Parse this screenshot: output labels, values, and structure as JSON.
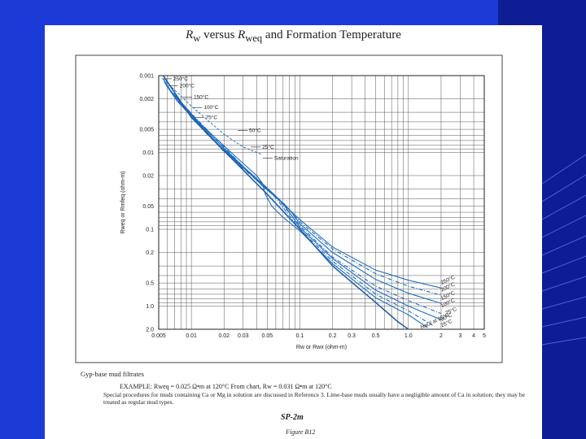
{
  "slide": {
    "background_color": "#1c3ad6",
    "accent_color": "#0a1a8a"
  },
  "chart_data": {
    "type": "line",
    "title": "versus  and Formation Temperature",
    "title_parts": {
      "x_var": "R",
      "x_sub": "w",
      "y_var": "R",
      "y_sub": "weq",
      "rest": "and Formation Temperature"
    },
    "xlabel": "Rw or Rwx (ohm-m)",
    "ylabel": "Rweq or Rmfeq (ohm-m)",
    "x_scale": "log",
    "y_scale": "log",
    "y_reversed": true,
    "xlim": [
      0.005,
      5
    ],
    "ylim": [
      0.001,
      2.0
    ],
    "x_ticks": [
      {
        "v": 0.005,
        "label": "0.005"
      },
      {
        "v": 0.01,
        "label": "0.01"
      },
      {
        "v": 0.02,
        "label": "0.02"
      },
      {
        "v": 0.03,
        "label": "0.03"
      },
      {
        "v": 0.05,
        "label": "0.05"
      },
      {
        "v": 0.1,
        "label": "0.1"
      },
      {
        "v": 0.2,
        "label": "0.2"
      },
      {
        "v": 0.3,
        "label": "0.3"
      },
      {
        "v": 0.5,
        "label": "0.5"
      },
      {
        "v": 1.0,
        "label": "1.0"
      },
      {
        "v": 2,
        "label": "2"
      },
      {
        "v": 3,
        "label": "3"
      },
      {
        "v": 4,
        "label": "4"
      },
      {
        "v": 5,
        "label": "5"
      }
    ],
    "y_ticks": [
      {
        "v": 0.001,
        "label": "0.001"
      },
      {
        "v": 0.002,
        "label": "0.002"
      },
      {
        "v": 0.005,
        "label": "0.005"
      },
      {
        "v": 0.01,
        "label": "0.01"
      },
      {
        "v": 0.02,
        "label": "0.02"
      },
      {
        "v": 0.05,
        "label": "0.05"
      },
      {
        "v": 0.1,
        "label": "0.1"
      },
      {
        "v": 0.2,
        "label": "0.2"
      },
      {
        "v": 0.5,
        "label": "0.5"
      },
      {
        "v": 1.0,
        "label": "1.0"
      },
      {
        "v": 2.0,
        "label": "2.0"
      }
    ],
    "grid": true,
    "series": [
      {
        "name": "250°C",
        "label_left": "250°C",
        "label_right": "250°C",
        "points": [
          [
            0.0055,
            0.0011
          ],
          [
            0.0065,
            0.0016
          ],
          [
            0.008,
            0.0023
          ],
          [
            0.012,
            0.0045
          ],
          [
            0.02,
            0.0095
          ],
          [
            0.035,
            0.019
          ],
          [
            0.06,
            0.038
          ],
          [
            0.1,
            0.075
          ],
          [
            0.2,
            0.17
          ],
          [
            0.5,
            0.34
          ],
          [
            1.0,
            0.46
          ],
          [
            2.0,
            0.58
          ]
        ]
      },
      {
        "name": "200°C",
        "label_left": "200°C",
        "label_right": "200°C",
        "points": [
          [
            0.0056,
            0.0012
          ],
          [
            0.007,
            0.0019
          ],
          [
            0.009,
            0.0029
          ],
          [
            0.014,
            0.0058
          ],
          [
            0.022,
            0.011
          ],
          [
            0.04,
            0.023
          ],
          [
            0.07,
            0.045
          ],
          [
            0.1,
            0.08
          ],
          [
            0.2,
            0.18
          ],
          [
            0.5,
            0.38
          ],
          [
            1.0,
            0.55
          ],
          [
            2.0,
            0.72
          ]
        ]
      },
      {
        "name": "150°C",
        "label_left": "150°C",
        "label_right": "150°C",
        "points": [
          [
            0.0058,
            0.0013
          ],
          [
            0.0075,
            0.0022
          ],
          [
            0.011,
            0.0038
          ],
          [
            0.017,
            0.0075
          ],
          [
            0.028,
            0.014
          ],
          [
            0.05,
            0.029
          ],
          [
            0.08,
            0.055
          ],
          [
            0.1,
            0.085
          ],
          [
            0.2,
            0.2
          ],
          [
            0.5,
            0.45
          ],
          [
            1.0,
            0.68
          ],
          [
            2.0,
            0.92
          ]
        ]
      },
      {
        "name": "100°C",
        "label_left": "100°C",
        "label_right": "100°C",
        "points": [
          [
            0.006,
            0.0014
          ],
          [
            0.0085,
            0.0026
          ],
          [
            0.013,
            0.005
          ],
          [
            0.02,
            0.0098
          ],
          [
            0.035,
            0.019
          ],
          [
            0.06,
            0.037
          ],
          [
            0.1,
            0.09
          ],
          [
            0.2,
            0.23
          ],
          [
            0.5,
            0.55
          ],
          [
            1.0,
            0.85
          ],
          [
            2.0,
            1.25
          ]
        ]
      },
      {
        "name": "75°C",
        "label_left": "75°C",
        "label_right": "75°C",
        "points": [
          [
            0.0062,
            0.0015
          ],
          [
            0.0095,
            0.003
          ],
          [
            0.016,
            0.0065
          ],
          [
            0.028,
            0.014
          ],
          [
            0.045,
            0.027
          ],
          [
            0.07,
            0.046
          ],
          [
            0.1,
            0.095
          ],
          [
            0.2,
            0.24
          ],
          [
            0.5,
            0.62
          ],
          [
            1.0,
            1.0
          ],
          [
            2.0,
            1.5
          ]
        ]
      },
      {
        "name": "50°C",
        "label_left": "50°C",
        "label_right": "50°C",
        "points": [
          [
            0.0065,
            0.0016
          ],
          [
            0.011,
            0.0036
          ],
          [
            0.02,
            0.0085
          ],
          [
            0.035,
            0.019
          ],
          [
            0.06,
            0.039
          ],
          [
            0.1,
            0.1
          ],
          [
            0.2,
            0.26
          ],
          [
            0.5,
            0.7
          ],
          [
            1.0,
            1.15
          ],
          [
            1.7,
            1.8
          ]
        ]
      },
      {
        "name": "25°C",
        "label_left": "25°C",
        "label_right": "25°C",
        "points": [
          [
            0.0068,
            0.0017
          ],
          [
            0.012,
            0.0042
          ],
          [
            0.025,
            0.011
          ],
          [
            0.04,
            0.02
          ],
          [
            0.045,
            0.025
          ],
          [
            0.048,
            0.035
          ],
          [
            0.055,
            0.05
          ],
          [
            0.07,
            0.07
          ],
          [
            0.1,
            0.105
          ],
          [
            0.2,
            0.28
          ],
          [
            0.5,
            0.78
          ],
          [
            1.0,
            1.3
          ],
          [
            1.5,
            1.9
          ]
        ]
      },
      {
        "name": "Saturation",
        "label_left": "Saturation",
        "points": [
          [
            0.0055,
            0.0011
          ],
          [
            0.01,
            0.0025
          ],
          [
            0.02,
            0.0058
          ],
          [
            0.03,
            0.0085
          ],
          [
            0.045,
            0.0107
          ]
        ]
      },
      {
        "name": "NaCl at 25°C",
        "label_right": "NaCl at 25°C",
        "points": [
          [
            0.0055,
            0.001
          ],
          [
            0.01,
            0.0035
          ],
          [
            0.02,
            0.0095
          ],
          [
            0.05,
            0.035
          ],
          [
            0.1,
            0.1
          ],
          [
            0.2,
            0.3
          ],
          [
            0.5,
            0.9
          ],
          [
            0.8,
            1.6
          ],
          [
            1.0,
            2.0
          ]
        ]
      }
    ]
  },
  "caption": {
    "heading": "Gyp-base mud filtrates",
    "example": "EXAMPLE:  Rweq = 0.025 Ω•m at 120°C   From chart, Rw = 0.031 Ω•m at 120°C",
    "notes": "Special procedures for muds containing Ca or Mg in solution are discussed in Reference 3.  Lime-base muds usually have a negligible amount of Ca in solution; they may be treated as regular mud types.",
    "page_code": "SP-2m",
    "figure": "Figure B12"
  }
}
